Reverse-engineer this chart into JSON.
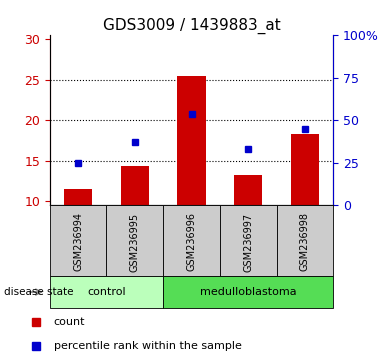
{
  "title": "GDS3009 / 1439883_at",
  "samples": [
    "GSM236994",
    "GSM236995",
    "GSM236996",
    "GSM236997",
    "GSM236998"
  ],
  "bar_values": [
    11.5,
    14.3,
    25.5,
    13.3,
    18.3
  ],
  "percentile_values": [
    25.0,
    37.0,
    54.0,
    33.0,
    45.0
  ],
  "bar_color": "#cc0000",
  "percentile_color": "#0000cc",
  "ylim_left": [
    9.5,
    30.5
  ],
  "ylim_right": [
    0,
    100
  ],
  "yticks_left": [
    10,
    15,
    20,
    25,
    30
  ],
  "ytick_labels_left": [
    "10",
    "15",
    "20",
    "25",
    "30"
  ],
  "yticks_right": [
    0,
    25,
    50,
    75,
    100
  ],
  "ytick_labels_right": [
    "0",
    "25",
    "50",
    "75",
    "100%"
  ],
  "disease_groups": [
    {
      "label": "control",
      "indices": [
        0,
        1
      ],
      "color": "#bbffbb"
    },
    {
      "label": "medulloblastoma",
      "indices": [
        2,
        3,
        4
      ],
      "color": "#55dd55"
    }
  ],
  "disease_state_label": "disease state",
  "legend_count": "count",
  "legend_percentile": "percentile rank within the sample",
  "background_color": "#ffffff",
  "tick_area_color": "#cccccc",
  "bar_width": 0.5,
  "title_fontsize": 11,
  "axis_fontsize": 9,
  "label_fontsize": 8
}
